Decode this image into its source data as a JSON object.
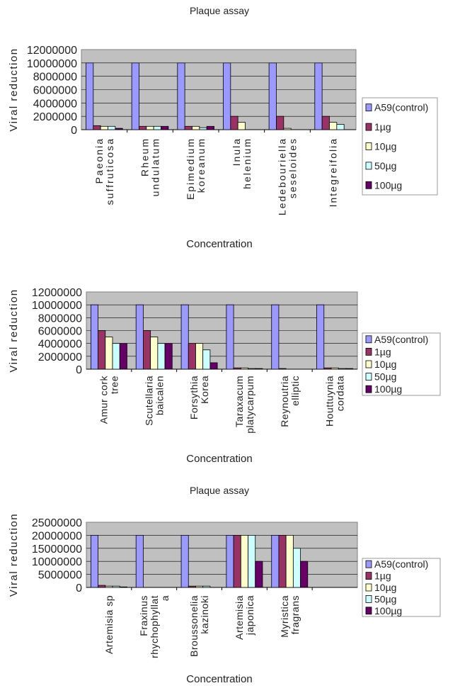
{
  "legend_colors": [
    "#9999ff",
    "#993366",
    "#ffffcc",
    "#ccffff",
    "#660066"
  ],
  "plot_background": "#c0c0c0",
  "chart_data": [
    {
      "type": "bar",
      "title": "Plaque assay",
      "xlabel": "Concentration",
      "ylabel": "Viral reduction",
      "ylim": [
        0,
        12000000
      ],
      "yticks": [
        "0",
        "2000000",
        "4000000",
        "6000000",
        "8000000",
        "10000000",
        "12000000"
      ],
      "grid": true,
      "legend": "right",
      "categories": [
        "Paeonia\nsuffruticosa",
        "Rheum\nundulatum",
        "Epimedium\nkoreanum",
        "Inula\nhelenium",
        "Ledebouriella\nseseloides",
        "Integreifolia"
      ],
      "series": [
        {
          "name": "A59(control)",
          "values": [
            10000000,
            10000000,
            10000000,
            10000000,
            10000000,
            10000000
          ]
        },
        {
          "name": "1µg",
          "values": [
            600000,
            500000,
            500000,
            2000000,
            2000000,
            2000000
          ]
        },
        {
          "name": "10µg",
          "values": [
            500000,
            500000,
            500000,
            1100000,
            200000,
            1100000
          ]
        },
        {
          "name": "50µg",
          "values": [
            500000,
            500000,
            300000,
            0,
            0,
            800000
          ]
        },
        {
          "name": "100µg",
          "values": [
            200000,
            500000,
            500000,
            0,
            0,
            0
          ]
        }
      ]
    },
    {
      "type": "bar",
      "title": "",
      "xlabel": "Concentration",
      "ylabel": "Viral reduction",
      "ylim": [
        0,
        12000000
      ],
      "yticks": [
        "0",
        "2000000",
        "4000000",
        "6000000",
        "8000000",
        "10000000",
        "12000000"
      ],
      "grid": true,
      "legend": "right",
      "categories": [
        "Amur cork\ntree",
        "Scutellaria\nbaicalen",
        "Forsythia\nKorea",
        "Taraxacum\nplatycarpum",
        "Reynoutria\nelliptic",
        "Houttuynia\ncordata"
      ],
      "series": [
        {
          "name": "A59(control)",
          "values": [
            10000000,
            10000000,
            10000000,
            10000000,
            10000000,
            10000000
          ]
        },
        {
          "name": "1µg",
          "values": [
            6000000,
            6000000,
            4000000,
            200000,
            100000,
            200000
          ]
        },
        {
          "name": "10µg",
          "values": [
            5000000,
            5000000,
            4000000,
            200000,
            0,
            200000
          ]
        },
        {
          "name": "50µg",
          "values": [
            4000000,
            4000000,
            3000000,
            100000,
            0,
            100000
          ]
        },
        {
          "name": "100µg",
          "values": [
            4000000,
            4000000,
            1000000,
            100000,
            0,
            100000
          ]
        }
      ]
    },
    {
      "type": "bar",
      "title": "Plaque assay",
      "xlabel": "Concentration",
      "ylabel": "Viral reduction",
      "ylim": [
        0,
        25000000
      ],
      "yticks": [
        "0",
        "5000000",
        "10000000",
        "15000000",
        "20000000",
        "25000000"
      ],
      "grid": true,
      "legend": "right",
      "categories": [
        "Artemisia sp",
        "Fraxinus\nrhychophyllat\na",
        "Broussonelia\nkazinoki",
        "Artemisia\njaponica",
        "Myristica\nfragrans",
        ""
      ],
      "series": [
        {
          "name": "A59(control)",
          "values": [
            20000000,
            20000000,
            20000000,
            20000000,
            20000000,
            0
          ]
        },
        {
          "name": "1µg",
          "values": [
            800000,
            0,
            500000,
            20000000,
            20000000,
            0
          ]
        },
        {
          "name": "10µg",
          "values": [
            500000,
            0,
            500000,
            20000000,
            20000000,
            0
          ]
        },
        {
          "name": "50µg",
          "values": [
            500000,
            0,
            500000,
            20000000,
            15000000,
            0
          ]
        },
        {
          "name": "100µg",
          "values": [
            200000,
            0,
            0,
            10000000,
            10000000,
            0
          ]
        }
      ]
    }
  ]
}
